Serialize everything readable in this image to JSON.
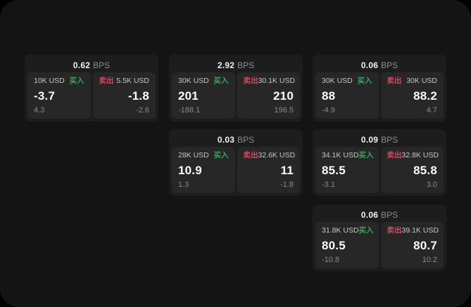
{
  "labels": {
    "bps_suffix": "BPS",
    "buy": "买入",
    "sell": "卖出"
  },
  "colors": {
    "buy_green": "#3ba55c",
    "sell_red": "#d0495e",
    "app_background": "#141414",
    "card_background": "#1d1d1d",
    "panel_background": "#272727"
  },
  "cards": [
    {
      "bps": "0.62",
      "buy": {
        "amount": "10K USD",
        "price": "-3.7",
        "delta": "4.3"
      },
      "sell": {
        "amount": "5.5K USD",
        "price": "-1.8",
        "delta": "-2.6"
      }
    },
    {
      "bps": "2.92",
      "buy": {
        "amount": "30K USD",
        "price": "201",
        "delta": "-188.1"
      },
      "sell": {
        "amount": "30.1K USD",
        "price": "210",
        "delta": "196.5"
      }
    },
    {
      "bps": "0.06",
      "buy": {
        "amount": "30K USD",
        "price": "88",
        "delta": "-4.9"
      },
      "sell": {
        "amount": "30K USD",
        "price": "88.2",
        "delta": "4.7"
      }
    },
    {
      "bps": "0.03",
      "buy": {
        "amount": "28K USD",
        "price": "10.9",
        "delta": "1.3"
      },
      "sell": {
        "amount": "32.6K USD",
        "price": "11",
        "delta": "-1.8"
      }
    },
    {
      "bps": "0.09",
      "buy": {
        "amount": "34.1K USD",
        "price": "85.5",
        "delta": "-3.1"
      },
      "sell": {
        "amount": "32.8K USD",
        "price": "85.8",
        "delta": "3.0"
      }
    },
    {
      "bps": "0.06",
      "buy": {
        "amount": "31.8K USD",
        "price": "80.5",
        "delta": "-10.8"
      },
      "sell": {
        "amount": "39.1K USD",
        "price": "80.7",
        "delta": "10.2"
      }
    }
  ]
}
